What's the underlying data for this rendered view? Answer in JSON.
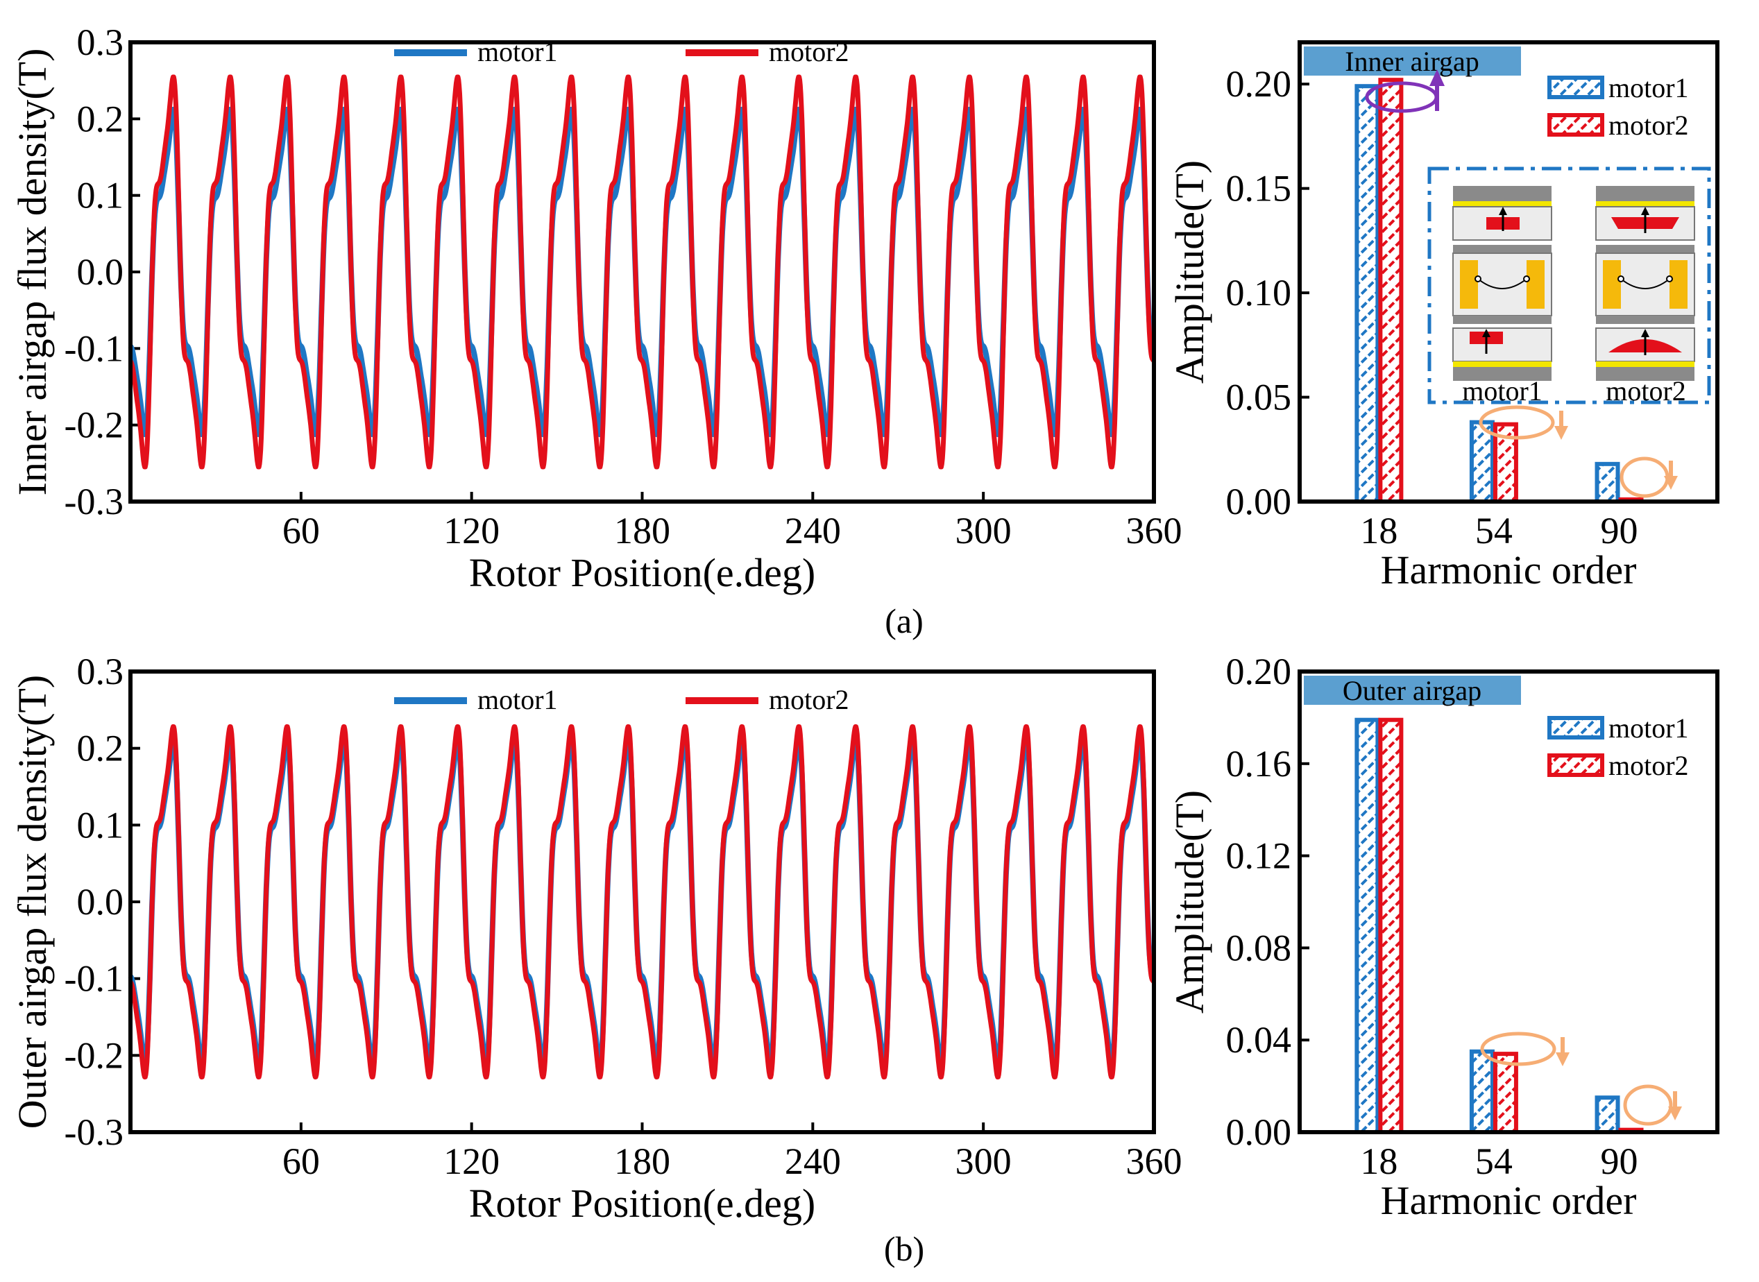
{
  "colors": {
    "motor1": "#1f77c4",
    "motor2": "#e3101b",
    "label_bg": "#5b9fd0",
    "orange": "#f6ad74",
    "purple": "#8033b8"
  },
  "captions": {
    "a": "(a)",
    "b": "(b)"
  },
  "inset": {
    "left_label": "motor1",
    "right_label": "motor2"
  },
  "chart_data": [
    {
      "id": "a-wave",
      "type": "line",
      "title": "",
      "xlabel": "Rotor Position(e.deg)",
      "ylabel": "Inner airgap flux density(T)",
      "xlim": [
        0,
        360
      ],
      "ylim": [
        -0.3,
        0.3
      ],
      "xticks": [
        60,
        120,
        180,
        240,
        300,
        360
      ],
      "yticks": [
        -0.3,
        -0.2,
        -0.1,
        0.0,
        0.1,
        0.2,
        0.3
      ],
      "ytick_labels": [
        "-0.3",
        "-0.2",
        "-0.1",
        "0.0",
        "0.1",
        "0.2",
        "0.3"
      ],
      "periods": 18,
      "series": [
        {
          "name": "motor1",
          "peak": 0.2,
          "trough": -0.2
        },
        {
          "name": "motor2",
          "peak": 0.24,
          "trough": -0.24
        }
      ]
    },
    {
      "id": "a-bar",
      "type": "bar",
      "title": "Inner airgap",
      "xlabel": "Harmonic order",
      "ylabel": "Amplitude(T)",
      "categories": [
        "18",
        "54",
        "90"
      ],
      "ylim": [
        0,
        0.22
      ],
      "yticks": [
        0.0,
        0.05,
        0.1,
        0.15,
        0.2
      ],
      "ytick_labels": [
        "0.00",
        "0.05",
        "0.10",
        "0.15",
        "0.20"
      ],
      "series": [
        {
          "name": "motor1",
          "values": [
            0.199,
            0.038,
            0.018
          ]
        },
        {
          "name": "motor2",
          "values": [
            0.202,
            0.037,
            0.001
          ]
        }
      ]
    },
    {
      "id": "b-wave",
      "type": "line",
      "title": "",
      "xlabel": "Rotor Position(e.deg)",
      "ylabel": "Outer airgap flux density(T)",
      "xlim": [
        0,
        360
      ],
      "ylim": [
        -0.3,
        0.3
      ],
      "xticks": [
        60,
        120,
        180,
        240,
        300,
        360
      ],
      "yticks": [
        -0.3,
        -0.2,
        -0.1,
        0.0,
        0.1,
        0.2,
        0.3
      ],
      "ytick_labels": [
        "-0.3",
        "-0.2",
        "-0.1",
        "0.0",
        "0.1",
        "0.2",
        "0.3"
      ],
      "periods": 18,
      "series": [
        {
          "name": "motor1",
          "peak": 0.2,
          "trough": -0.2
        },
        {
          "name": "motor2",
          "peak": 0.215,
          "trough": -0.215
        }
      ]
    },
    {
      "id": "b-bar",
      "type": "bar",
      "title": "Outer airgap",
      "xlabel": "Harmonic order",
      "ylabel": "Amplitude(T)",
      "categories": [
        "18",
        "54",
        "90"
      ],
      "ylim": [
        0,
        0.2
      ],
      "yticks": [
        0.0,
        0.04,
        0.08,
        0.12,
        0.16,
        0.2
      ],
      "ytick_labels": [
        "0.00",
        "0.04",
        "0.08",
        "0.12",
        "0.16",
        "0.20"
      ],
      "series": [
        {
          "name": "motor1",
          "values": [
            0.179,
            0.035,
            0.015
          ]
        },
        {
          "name": "motor2",
          "values": [
            0.179,
            0.034,
            0.001
          ]
        }
      ]
    }
  ]
}
